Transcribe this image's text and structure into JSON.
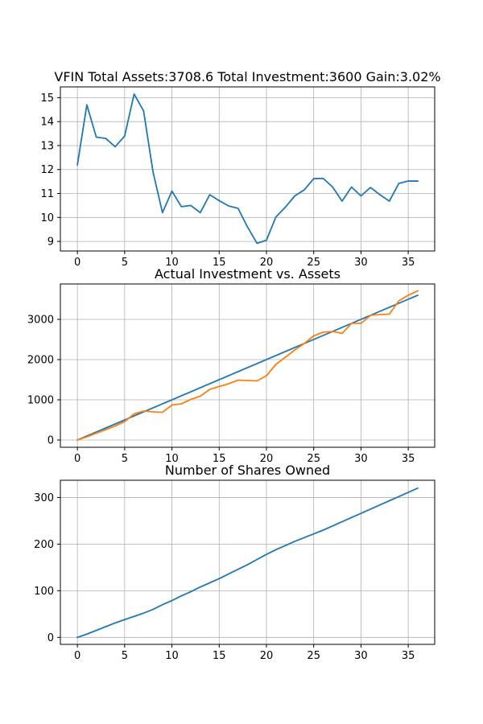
{
  "chart_data": [
    {
      "type": "line",
      "title": "VFIN Total Assets:3708.6  Total Investment:3600  Gain:3.02%",
      "xlabel": "",
      "ylabel": "",
      "xlim": [
        -1.8,
        37.8
      ],
      "ylim": [
        8.6,
        15.45
      ],
      "xticks": [
        0,
        5,
        10,
        15,
        20,
        25,
        30,
        35
      ],
      "yticks": [
        9,
        10,
        11,
        12,
        13,
        14,
        15
      ],
      "grid": true,
      "series": [
        {
          "color": "#1f77b4",
          "x": [
            0,
            1,
            2,
            3,
            4,
            5,
            6,
            7,
            8,
            9,
            10,
            11,
            12,
            13,
            14,
            15,
            16,
            17,
            18,
            19,
            20,
            21,
            22,
            23,
            24,
            25,
            26,
            27,
            28,
            29,
            30,
            31,
            32,
            33,
            34,
            35,
            36
          ],
          "values": [
            12.2,
            14.7,
            13.35,
            13.3,
            12.95,
            13.4,
            15.15,
            14.45,
            11.9,
            10.2,
            11.1,
            10.45,
            10.5,
            10.2,
            10.95,
            10.7,
            10.48,
            10.38,
            9.6,
            8.92,
            9.05,
            10.02,
            10.43,
            10.9,
            11.15,
            11.62,
            11.63,
            11.27,
            10.68,
            11.27,
            10.9,
            11.25,
            10.95,
            10.68,
            11.42,
            11.52,
            11.52
          ]
        }
      ]
    },
    {
      "type": "line",
      "title": "Actual Investment vs. Assets",
      "xlabel": "",
      "ylabel": "",
      "xlim": [
        -1.8,
        37.8
      ],
      "ylim": [
        -180,
        3880
      ],
      "xticks": [
        0,
        5,
        10,
        15,
        20,
        25,
        30,
        35
      ],
      "yticks": [
        0,
        1000,
        2000,
        3000
      ],
      "grid": true,
      "series": [
        {
          "color": "#1f77b4",
          "x": [
            0,
            36
          ],
          "values": [
            0,
            3600
          ]
        },
        {
          "color": "#ff7f0e",
          "x": [
            0,
            1,
            2,
            3,
            4,
            5,
            6,
            7,
            8,
            9,
            10,
            11,
            12,
            13,
            14,
            15,
            16,
            17,
            18,
            19,
            20,
            21,
            22,
            23,
            24,
            25,
            26,
            27,
            28,
            29,
            30,
            31,
            32,
            33,
            34,
            35,
            36
          ],
          "values": [
            0,
            80,
            170,
            260,
            350,
            460,
            650,
            720,
            700,
            690,
            870,
            900,
            1010,
            1090,
            1260,
            1330,
            1400,
            1490,
            1480,
            1470,
            1600,
            1880,
            2060,
            2240,
            2400,
            2590,
            2680,
            2700,
            2650,
            2900,
            2900,
            3100,
            3120,
            3130,
            3460,
            3600,
            3708.6
          ]
        }
      ]
    },
    {
      "type": "line",
      "title": "Number of Shares Owned",
      "xlabel": "",
      "ylabel": "",
      "xlim": [
        -1.8,
        37.8
      ],
      "ylim": [
        -15,
        337
      ],
      "xticks": [
        0,
        5,
        10,
        15,
        20,
        25,
        30,
        35
      ],
      "yticks": [
        0,
        100,
        200,
        300
      ],
      "grid": true,
      "series": [
        {
          "color": "#1f77b4",
          "x": [
            0,
            1,
            2,
            3,
            4,
            5,
            6,
            7,
            8,
            9,
            10,
            11,
            12,
            13,
            14,
            15,
            16,
            17,
            18,
            19,
            20,
            21,
            22,
            23,
            24,
            25,
            26,
            27,
            28,
            29,
            30,
            31,
            32,
            33,
            34,
            35,
            36
          ],
          "values": [
            0,
            7,
            15,
            23,
            31,
            38,
            45,
            52,
            60,
            70,
            79,
            89,
            98,
            108,
            117,
            126,
            136,
            146,
            156,
            167,
            178,
            188,
            197,
            206,
            214,
            222,
            230,
            239,
            248,
            257,
            266,
            275,
            284,
            293,
            302,
            311,
            320
          ]
        }
      ]
    }
  ]
}
